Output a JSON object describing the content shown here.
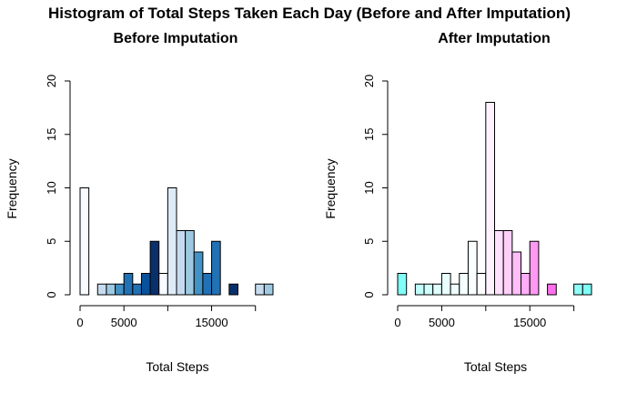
{
  "title": "Histogram of Total Steps Taken Each Day (Before and After Imputation)",
  "chart_data": [
    {
      "type": "bar",
      "title": "Before Imputation",
      "xlabel": "Total Steps",
      "ylabel": "Frequency",
      "xlim": [
        0,
        22000
      ],
      "ylim": [
        0,
        20
      ],
      "bin_width": 1000,
      "x_ticks": [
        0,
        5000,
        10000,
        15000,
        20000
      ],
      "x_tick_labels": [
        "0",
        "5000",
        "",
        "15000",
        ""
      ],
      "y_ticks": [
        0,
        5,
        10,
        15,
        20
      ],
      "y_tick_labels": [
        "0",
        "5",
        "10",
        "15",
        "20"
      ],
      "bins_start": [
        0,
        1000,
        2000,
        3000,
        4000,
        5000,
        6000,
        7000,
        8000,
        9000,
        10000,
        11000,
        12000,
        13000,
        14000,
        15000,
        16000,
        17000,
        18000,
        19000,
        20000,
        21000
      ],
      "values": [
        10,
        0,
        1,
        1,
        1,
        2,
        1,
        2,
        5,
        2,
        10,
        6,
        6,
        4,
        2,
        5,
        0,
        1,
        0,
        0,
        1,
        1
      ],
      "colors": [
        "#F7FBFF",
        "#F7FBFF",
        "#C6DBEF",
        "#9ECAE1",
        "#4292C6",
        "#2171B5",
        "#2171B5",
        "#08519C",
        "#08306B",
        "#F7FBFF",
        "#DEEBF7",
        "#C6DBEF",
        "#9ECAE1",
        "#4292C6",
        "#2171B5",
        "#2171B5",
        "#08519C",
        "#08306B",
        "#F7FBFF",
        "#DEEBF7",
        "#C6DBEF",
        "#9ECAE1"
      ]
    },
    {
      "type": "bar",
      "title": "After Imputation",
      "xlabel": "Total Steps",
      "ylabel": "Frequency",
      "xlim": [
        0,
        22000
      ],
      "ylim": [
        0,
        20
      ],
      "bin_width": 1000,
      "x_ticks": [
        0,
        5000,
        10000,
        15000,
        20000
      ],
      "x_tick_labels": [
        "0",
        "5000",
        "",
        "15000",
        ""
      ],
      "y_ticks": [
        0,
        5,
        10,
        15,
        20
      ],
      "y_tick_labels": [
        "0",
        "5",
        "10",
        "15",
        "20"
      ],
      "bins_start": [
        0,
        1000,
        2000,
        3000,
        4000,
        5000,
        6000,
        7000,
        8000,
        9000,
        10000,
        11000,
        12000,
        13000,
        14000,
        15000,
        16000,
        17000,
        18000,
        19000,
        20000,
        21000
      ],
      "values": [
        2,
        0,
        1,
        1,
        1,
        2,
        1,
        2,
        5,
        2,
        18,
        6,
        6,
        4,
        2,
        5,
        0,
        1,
        0,
        0,
        1,
        1
      ],
      "colors": [
        "#7FFFF8",
        "#9FFFFA",
        "#BFFFFB",
        "#CFFFFC",
        "#DFFFFD",
        "#E8FFFE",
        "#EFFFFF",
        "#F5FFFF",
        "#FAFFFF",
        "#FFFFFF",
        "#FFF2FE",
        "#FFE0FC",
        "#FFCFFA",
        "#FFBEF8",
        "#FFADF6",
        "#FF99F3",
        "#FF88F1",
        "#FF70EE",
        "#A6FFFA",
        "#B7FFFB",
        "#8FFFF9",
        "#80FFF8"
      ]
    }
  ]
}
